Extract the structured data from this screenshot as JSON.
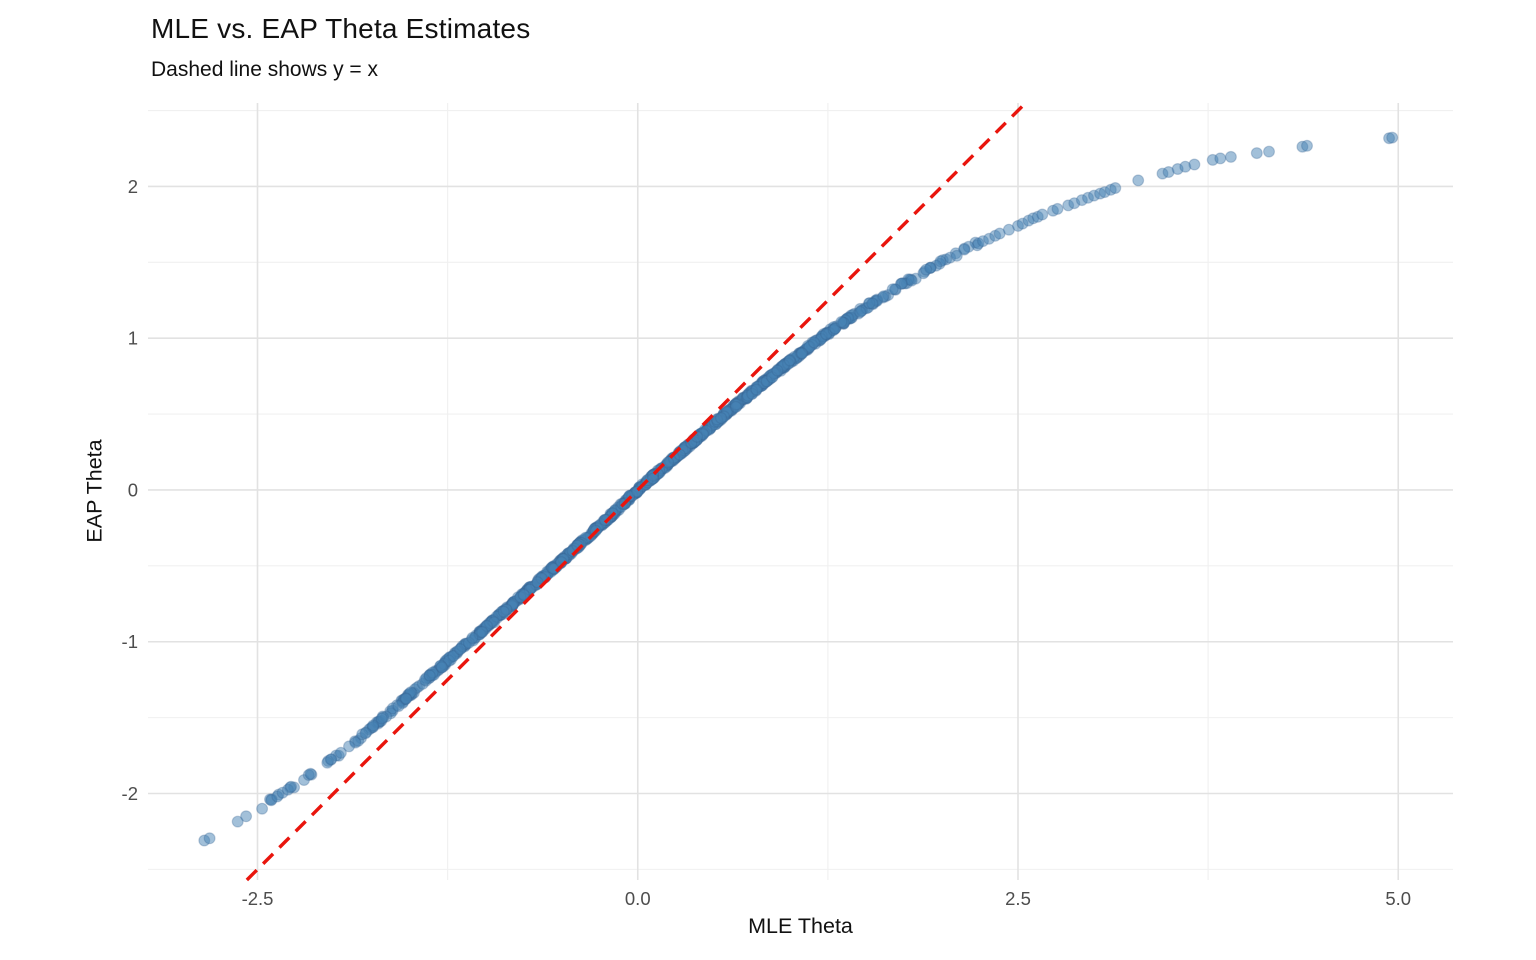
{
  "chart_data": {
    "type": "scatter",
    "title": "MLE vs. EAP Theta Estimates",
    "subtitle": "Dashed line shows y = x",
    "xlabel": "MLE Theta",
    "ylabel": "EAP Theta",
    "xlim": [
      -3.22,
      5.36
    ],
    "ylim": [
      -2.57,
      2.55
    ],
    "grid": true,
    "legend": "none",
    "x_ticks": [
      {
        "v": -2.5,
        "label": "-2.5"
      },
      {
        "v": 0.0,
        "label": "0.0"
      },
      {
        "v": 2.5,
        "label": "2.5"
      },
      {
        "v": 5.0,
        "label": "5.0"
      }
    ],
    "y_ticks": [
      {
        "v": -2,
        "label": "-2"
      },
      {
        "v": -1,
        "label": "-1"
      },
      {
        "v": 0,
        "label": "0"
      },
      {
        "v": 1,
        "label": "1"
      },
      {
        "v": 2,
        "label": "2"
      }
    ],
    "x_minor_ticks": [
      -1.25,
      1.25,
      3.75
    ],
    "y_minor_ticks": [
      -2.5,
      -1.5,
      -0.5,
      0.5,
      1.5,
      2.5
    ],
    "colors": {
      "point": "#4682B4",
      "point_edge": "#35618F",
      "reference_line": "#E9150D",
      "grid_major": "#E2E2E2",
      "grid_minor": "#F0F0F0",
      "tick_text": "#4D4D4D",
      "text": "#111111"
    },
    "reference_line": {
      "equation": "y = x",
      "style": "dashed"
    },
    "relationship_curve": {
      "x": [
        -2.85,
        -2.6,
        -2.4,
        -2.2,
        -2.0,
        -1.8,
        -1.6,
        -1.4,
        -1.2,
        -1.0,
        -0.8,
        -0.6,
        -0.4,
        -0.2,
        0.0,
        0.2,
        0.4,
        0.6,
        0.8,
        1.0,
        1.2,
        1.4,
        1.6,
        1.8,
        2.0,
        2.2,
        2.5,
        2.8,
        3.1,
        3.5,
        4.0,
        4.5,
        5.0
      ],
      "y": [
        -2.31,
        -2.16,
        -2.04,
        -1.91,
        -1.77,
        -1.61,
        -1.44,
        -1.26,
        -1.08,
        -0.91,
        -0.73,
        -0.555,
        -0.375,
        -0.19,
        0.0,
        0.175,
        0.35,
        0.52,
        0.685,
        0.845,
        1.0,
        1.14,
        1.27,
        1.39,
        1.5,
        1.61,
        1.735,
        1.86,
        1.975,
        2.1,
        2.215,
        2.285,
        2.33
      ]
    },
    "band": {
      "x_range": [
        -2.45,
        2.24
      ],
      "n_points": 920,
      "x_mean": 0.02,
      "x_sd": 1.03,
      "y_jitter": 0.013,
      "alpha": 0.5,
      "radius": 5.4
    },
    "tail_points": [
      [
        -2.85,
        -2.31
      ],
      [
        -2.815,
        -2.295
      ],
      [
        -2.63,
        -2.185
      ],
      [
        -2.575,
        -2.15
      ],
      [
        -2.47,
        -2.1
      ],
      [
        -2.41,
        -2.045
      ],
      [
        -2.37,
        -2.02
      ],
      [
        -2.335,
        -1.995
      ],
      [
        -2.3,
        -1.975
      ],
      [
        -2.28,
        -1.955
      ],
      [
        2.24,
        1.625
      ],
      [
        2.27,
        1.64
      ],
      [
        2.31,
        1.655
      ],
      [
        2.35,
        1.675
      ],
      [
        2.38,
        1.69
      ],
      [
        2.44,
        1.715
      ],
      [
        2.5,
        1.74
      ],
      [
        2.53,
        1.755
      ],
      [
        2.57,
        1.775
      ],
      [
        2.6,
        1.79
      ],
      [
        2.63,
        1.8
      ],
      [
        2.66,
        1.815
      ],
      [
        2.73,
        1.84
      ],
      [
        2.76,
        1.852
      ],
      [
        2.83,
        1.875
      ],
      [
        2.87,
        1.89
      ],
      [
        2.92,
        1.91
      ],
      [
        2.96,
        1.925
      ],
      [
        3.0,
        1.94
      ],
      [
        3.04,
        1.953
      ],
      [
        3.07,
        1.963
      ],
      [
        3.11,
        1.978
      ],
      [
        3.14,
        1.99
      ],
      [
        3.29,
        2.04
      ],
      [
        3.45,
        2.085
      ],
      [
        3.49,
        2.095
      ],
      [
        3.55,
        2.115
      ],
      [
        3.6,
        2.13
      ],
      [
        3.66,
        2.145
      ],
      [
        3.78,
        2.175
      ],
      [
        3.83,
        2.185
      ],
      [
        3.9,
        2.195
      ],
      [
        4.07,
        2.22
      ],
      [
        4.15,
        2.23
      ],
      [
        4.37,
        2.262
      ],
      [
        4.4,
        2.268
      ],
      [
        4.94,
        2.318
      ],
      [
        4.96,
        2.322
      ]
    ]
  }
}
